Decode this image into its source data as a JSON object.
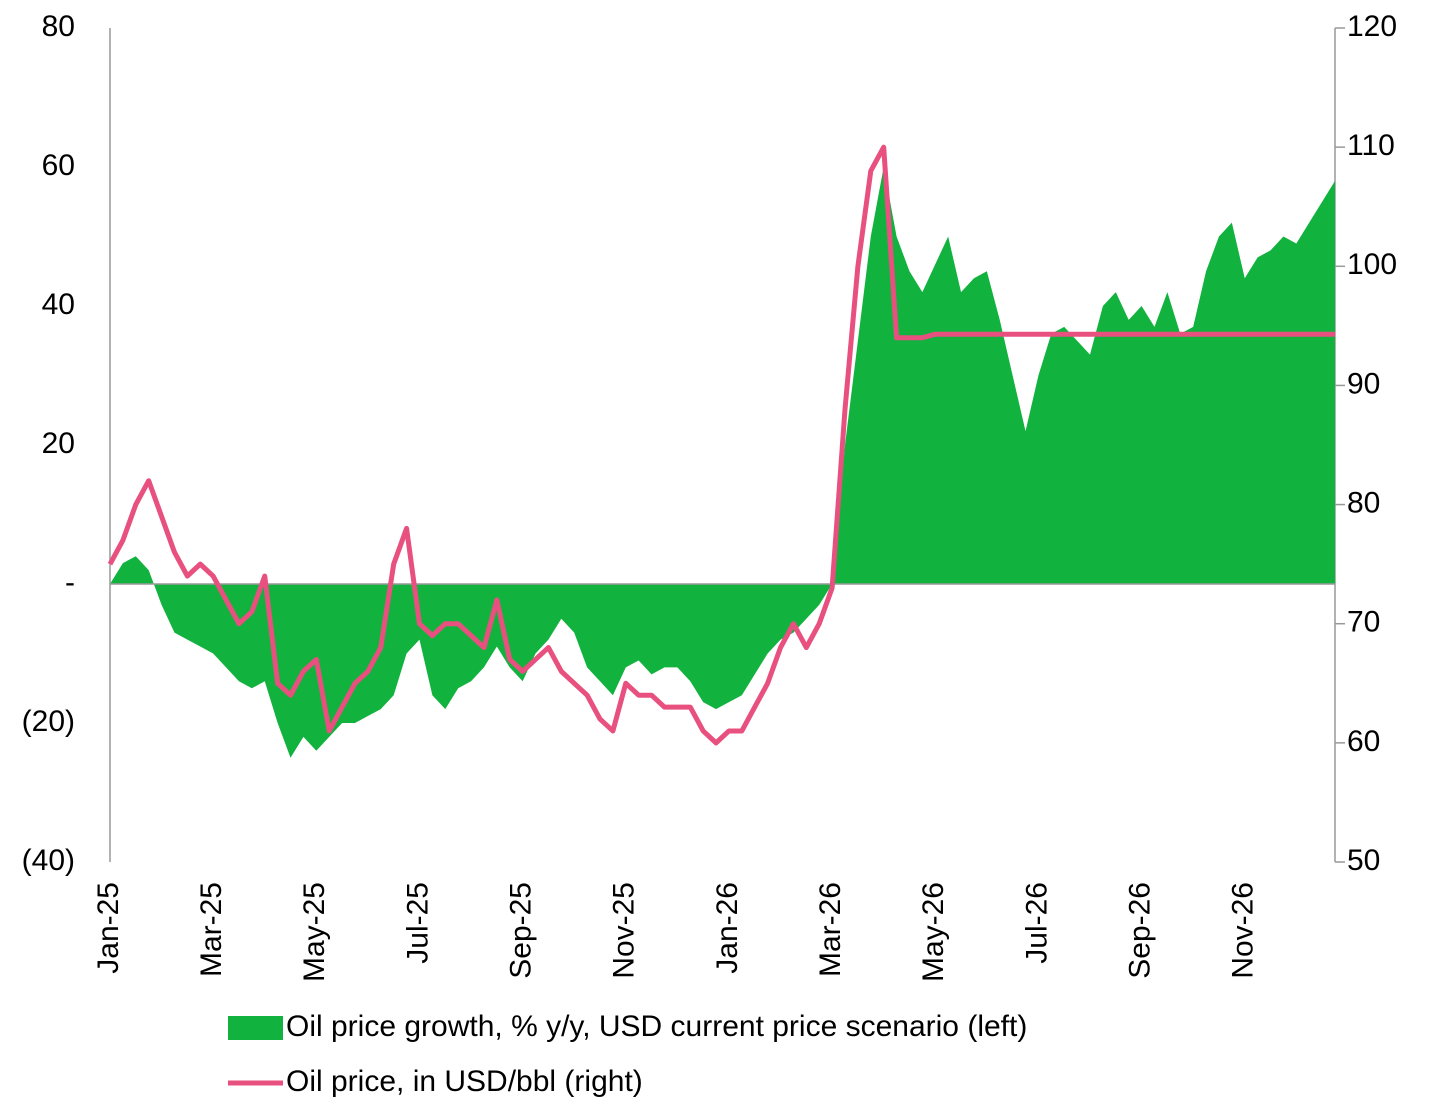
{
  "chart_data": {
    "type": "area",
    "categories": [
      "Jan-25",
      null,
      null,
      null,
      null,
      null,
      null,
      null,
      "Mar-25",
      null,
      null,
      null,
      null,
      null,
      null,
      null,
      "May-25",
      null,
      null,
      null,
      null,
      null,
      null,
      null,
      "Jul-25",
      null,
      null,
      null,
      null,
      null,
      null,
      null,
      "Sep-25",
      null,
      null,
      null,
      null,
      null,
      null,
      null,
      "Nov-25",
      null,
      null,
      null,
      null,
      null,
      null,
      null,
      "Jan-26",
      null,
      null,
      null,
      null,
      null,
      null,
      null,
      "Mar-26",
      null,
      null,
      null,
      null,
      null,
      null,
      null,
      "May-26",
      null,
      null,
      null,
      null,
      null,
      null,
      null,
      "Jul-26",
      null,
      null,
      null,
      null,
      null,
      null,
      null,
      "Sep-26",
      null,
      null,
      null,
      null,
      null,
      null,
      null,
      "Nov-26",
      null,
      null,
      null,
      null,
      null,
      null,
      null
    ],
    "series": [
      {
        "name": "Oil price growth, % y/y, USD current price scenario (left)",
        "type": "area",
        "color": "#12b23e",
        "values": [
          0,
          3,
          4,
          2,
          -3,
          -7,
          -8,
          -9,
          -10,
          -12,
          -14,
          -15,
          -14,
          -20,
          -25,
          -22,
          -24,
          -22,
          -20,
          -20,
          -19,
          -18,
          -16,
          -10,
          -8,
          -16,
          -18,
          -15,
          -14,
          -12,
          -9,
          -12,
          -14,
          -10,
          -8,
          -5,
          -7,
          -12,
          -14,
          -16,
          -12,
          -11,
          -13,
          -12,
          -12,
          -14,
          -17,
          -18,
          -17,
          -16,
          -13,
          -10,
          -8,
          -7,
          -5,
          -3,
          0,
          20,
          35,
          50,
          60,
          50,
          45,
          42,
          46,
          50,
          42,
          44,
          45,
          38,
          30,
          22,
          30,
          36,
          37,
          35,
          33,
          40,
          42,
          38,
          40,
          37,
          42,
          36,
          37,
          45,
          50,
          52,
          44,
          47,
          48,
          50,
          49,
          52,
          55,
          58
        ]
      },
      {
        "name": "Oil price, in USD/bbl (right)",
        "type": "line",
        "axis": "y2",
        "color": "#e8507f",
        "values": [
          75,
          77,
          80,
          82,
          79,
          76,
          74,
          75,
          74,
          72,
          70,
          71,
          74,
          65,
          64,
          66,
          67,
          61,
          63,
          65,
          66,
          68,
          75,
          78,
          70,
          69,
          70,
          70,
          69,
          68,
          72,
          67,
          66,
          67,
          68,
          66,
          65,
          64,
          62,
          61,
          65,
          64,
          64,
          63,
          63,
          63,
          61,
          60,
          61,
          61,
          63,
          65,
          68,
          70,
          68,
          70,
          73,
          88,
          100,
          108,
          110,
          94,
          94,
          94,
          94.3,
          94.3,
          94.3,
          94.3,
          94.3,
          94.3,
          94.3,
          94.3,
          94.3,
          94.3,
          94.3,
          94.3,
          94.3,
          94.3,
          94.3,
          94.3,
          94.3,
          94.3,
          94.3,
          94.3,
          94.3,
          94.3,
          94.3,
          94.3,
          94.3,
          94.3,
          94.3,
          94.3,
          94.3,
          94.3,
          94.3,
          94.3
        ]
      }
    ],
    "ylim": [
      -40,
      80
    ],
    "yticks": [
      {
        "value": -40,
        "label": "(40)"
      },
      {
        "value": -20,
        "label": "(20)"
      },
      {
        "value": 0,
        "label": "-"
      },
      20,
      40,
      60,
      80
    ],
    "y2lim": [
      50,
      120
    ],
    "y2ticks": [
      50,
      60,
      70,
      80,
      90,
      100,
      110,
      120
    ],
    "legend": "bottom"
  }
}
